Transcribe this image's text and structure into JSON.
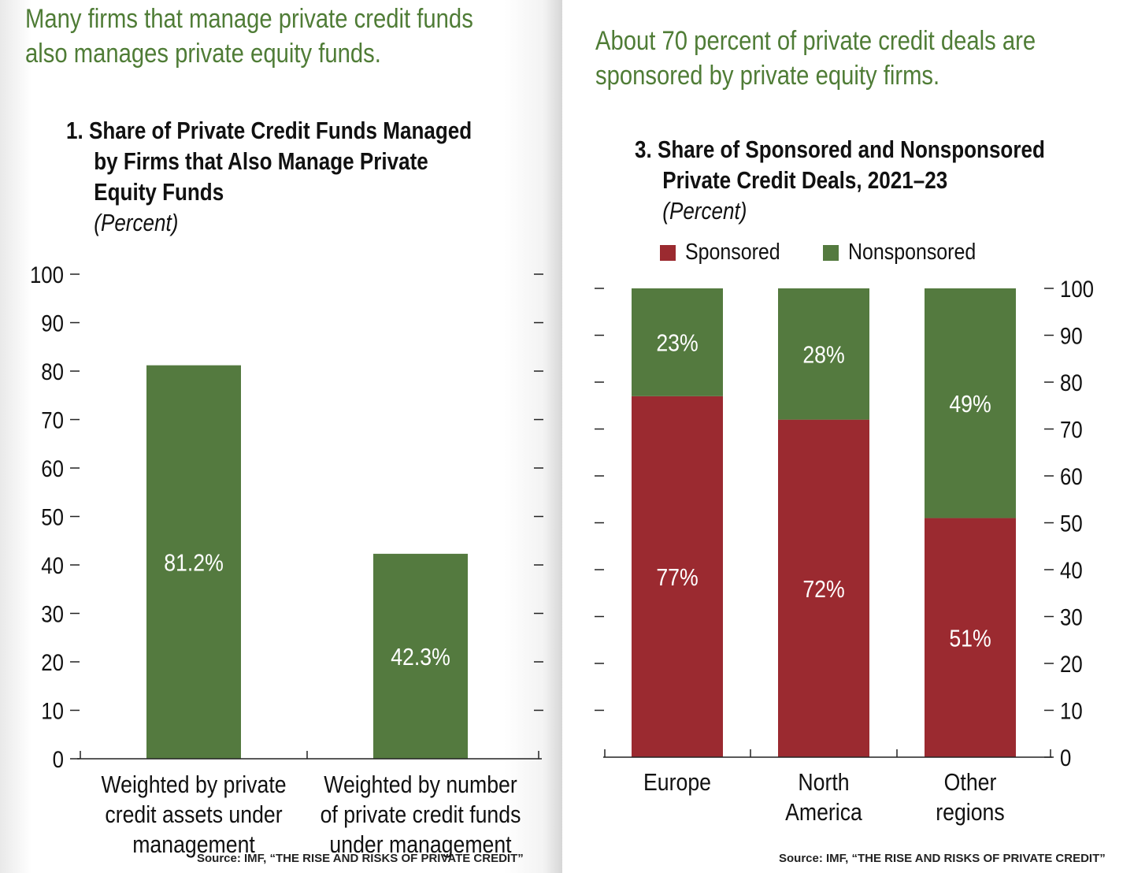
{
  "left": {
    "headline_lines": [
      "Many firms that manage private credit funds",
      "also manages private equity funds."
    ],
    "source": "Source: IMF, “THE RISE AND RISKS OF PRIVATE CREDIT”"
  },
  "right": {
    "headline_lines": [
      "About 70 percent of private credit deals are",
      "sponsored by private equity firms."
    ],
    "source": "Source: IMF, “THE RISE AND RISKS OF PRIVATE CREDIT”"
  },
  "colors": {
    "green": "#547a3f",
    "red": "#9b2a30",
    "headline": "#4f7c36"
  },
  "chart_data": [
    {
      "type": "bar",
      "title_lines": [
        "1. Share of Private Credit Funds Managed",
        "by Firms that Also Manage Private",
        "Equity Funds"
      ],
      "unit": "(Percent)",
      "categories": [
        [
          "Weighted by private",
          "credit assets under",
          "management"
        ],
        [
          "Weighted by number",
          "of private credit funds",
          "under management"
        ]
      ],
      "values": [
        81.2,
        42.3
      ],
      "data_labels": [
        "81.2%",
        "42.3%"
      ],
      "ylim": [
        0,
        100
      ],
      "yticks": [
        0,
        10,
        20,
        30,
        40,
        50,
        60,
        70,
        80,
        90,
        100
      ],
      "y_axis_side": "left",
      "grid": false
    },
    {
      "type": "bar",
      "stacked": true,
      "title_lines": [
        "3. Share of Sponsored and Nonsponsored",
        "Private Credit Deals, 2021–23"
      ],
      "unit": "(Percent)",
      "categories": [
        [
          "Europe"
        ],
        [
          "North",
          "America"
        ],
        [
          "Other",
          "regions"
        ]
      ],
      "series": [
        {
          "name": "Sponsored",
          "values": [
            77,
            72,
            51
          ],
          "labels": [
            "77%",
            "72%",
            "51%"
          ]
        },
        {
          "name": "Nonsponsored",
          "values": [
            23,
            28,
            49
          ],
          "labels": [
            "23%",
            "28%",
            "49%"
          ]
        }
      ],
      "ylim": [
        0,
        100
      ],
      "yticks": [
        0,
        10,
        20,
        30,
        40,
        50,
        60,
        70,
        80,
        90,
        100
      ],
      "y_axis_side": "right",
      "legend_position": "top",
      "grid": false
    }
  ]
}
